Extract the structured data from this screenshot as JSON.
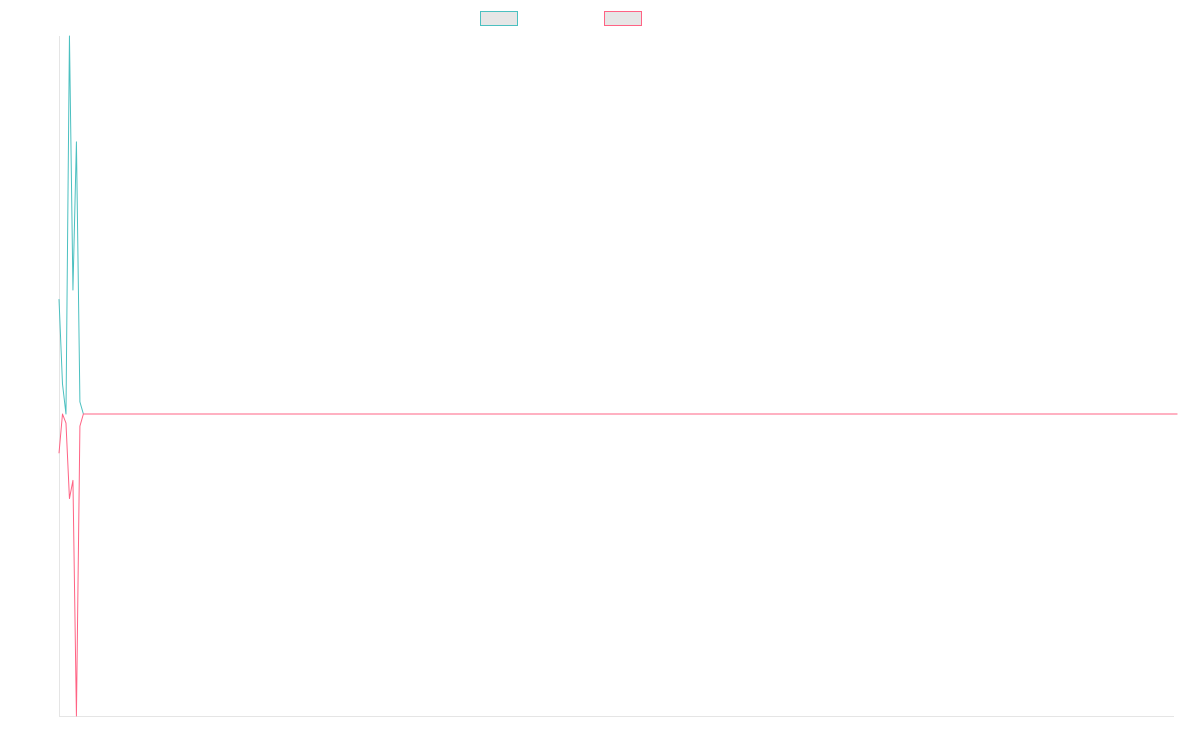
{
  "chart_data": {
    "type": "line",
    "title": "",
    "xlabel": "",
    "ylabel": "",
    "grid": false,
    "legend_placement": "top-center",
    "ylim": [
      -100,
      100
    ],
    "series": [
      {
        "color": "#4bc0c0",
        "values": [
          38,
          10,
          0,
          125,
          41,
          90,
          4,
          0,
          0,
          0,
          0,
          0,
          0,
          0,
          0,
          0,
          0,
          0,
          0,
          0,
          0,
          0,
          0,
          0,
          0,
          0,
          0,
          0,
          0,
          0,
          0,
          0,
          0,
          0,
          0,
          0,
          0,
          0,
          0,
          0,
          0,
          0,
          0,
          0,
          0,
          0,
          0,
          0,
          0,
          0,
          0,
          0,
          0,
          0,
          0,
          0,
          0,
          0,
          0,
          0,
          0,
          0,
          0,
          0,
          0,
          0,
          0,
          0,
          0,
          0,
          0,
          0,
          0,
          0,
          0,
          0,
          0,
          0,
          0,
          0,
          0,
          0,
          0,
          0,
          0,
          0,
          0,
          0,
          0,
          0,
          0,
          0,
          0,
          0,
          0,
          0,
          0,
          0,
          0,
          0,
          0,
          0,
          0,
          0,
          0,
          0,
          0,
          0,
          0,
          0,
          0,
          0,
          0,
          0,
          0,
          0,
          0,
          0,
          0,
          0,
          0,
          0,
          0,
          0,
          0,
          0,
          0,
          0,
          0,
          0,
          0,
          0,
          0,
          0,
          0,
          0,
          0,
          0,
          0,
          0,
          0,
          0,
          0,
          0,
          0,
          0,
          0,
          0,
          0,
          0,
          0,
          0,
          0,
          0,
          0,
          0,
          0,
          0,
          0,
          0,
          0,
          0,
          0,
          0,
          0,
          0,
          0,
          0,
          0,
          0,
          0,
          0,
          0,
          0,
          0,
          0,
          0,
          0,
          0,
          0,
          0,
          0,
          0,
          0,
          0,
          0,
          0,
          0,
          0,
          0,
          0,
          0,
          0,
          0,
          0,
          0,
          0,
          0,
          0,
          0,
          0,
          0,
          0,
          0,
          0,
          0,
          0,
          0,
          0,
          0,
          0,
          0,
          0,
          0,
          0,
          0,
          0,
          0,
          0,
          0,
          0,
          0,
          0,
          0,
          0,
          0,
          0,
          0,
          0,
          0,
          0,
          0,
          0,
          0,
          0,
          0,
          0,
          0,
          0,
          0,
          0,
          0,
          0,
          0,
          0,
          0,
          0,
          0,
          0,
          0,
          0,
          0,
          0,
          0,
          0,
          0,
          0,
          0,
          0,
          0,
          0,
          0,
          0,
          0,
          0,
          0,
          0,
          0,
          0,
          0,
          0,
          0,
          0,
          0,
          0,
          0,
          0,
          0,
          0,
          0,
          0,
          0,
          0,
          0,
          0,
          0,
          0,
          0,
          0,
          0,
          0,
          0,
          0,
          0,
          0,
          0,
          0,
          0,
          0,
          0,
          0,
          0,
          0,
          0,
          0,
          0,
          0,
          0,
          0,
          0,
          0,
          0,
          0,
          0,
          0,
          0,
          0,
          0,
          0,
          0,
          0
        ]
      },
      {
        "color": "#ff6384",
        "values": [
          -13,
          0,
          -3,
          -28,
          -22,
          -100,
          -4,
          0,
          0,
          0,
          0,
          0,
          0,
          0,
          0,
          0,
          0,
          0,
          0,
          0,
          0,
          0,
          0,
          0,
          0,
          0,
          0,
          0,
          0,
          0,
          0,
          0,
          0,
          0,
          0,
          0,
          0,
          0,
          0,
          0,
          0,
          0,
          0,
          0,
          0,
          0,
          0,
          0,
          0,
          0,
          0,
          0,
          0,
          0,
          0,
          0,
          0,
          0,
          0,
          0,
          0,
          0,
          0,
          0,
          0,
          0,
          0,
          0,
          0,
          0,
          0,
          0,
          0,
          0,
          0,
          0,
          0,
          0,
          0,
          0,
          0,
          0,
          0,
          0,
          0,
          0,
          0,
          0,
          0,
          0,
          0,
          0,
          0,
          0,
          0,
          0,
          0,
          0,
          0,
          0,
          0,
          0,
          0,
          0,
          0,
          0,
          0,
          0,
          0,
          0,
          0,
          0,
          0,
          0,
          0,
          0,
          0,
          0,
          0,
          0,
          0,
          0,
          0,
          0,
          0,
          0,
          0,
          0,
          0,
          0,
          0,
          0,
          0,
          0,
          0,
          0,
          0,
          0,
          0,
          0,
          0,
          0,
          0,
          0,
          0,
          0,
          0,
          0,
          0,
          0,
          0,
          0,
          0,
          0,
          0,
          0,
          0,
          0,
          0,
          0,
          0,
          0,
          0,
          0,
          0,
          0,
          0,
          0,
          0,
          0,
          0,
          0,
          0,
          0,
          0,
          0,
          0,
          0,
          0,
          0,
          0,
          0,
          0,
          0,
          0,
          0,
          0,
          0,
          0,
          0,
          0,
          0,
          0,
          0,
          0,
          0,
          0,
          0,
          0,
          0,
          0,
          0,
          0,
          0,
          0,
          0,
          0,
          0,
          0,
          0,
          0,
          0,
          0,
          0,
          0,
          0,
          0,
          0,
          0,
          0,
          0,
          0,
          0,
          0,
          0,
          0,
          0,
          0,
          0,
          0,
          0,
          0,
          0,
          0,
          0,
          0,
          0,
          0,
          0,
          0,
          0,
          0,
          0,
          0,
          0,
          0,
          0,
          0,
          0,
          0,
          0,
          0,
          0,
          0,
          0,
          0,
          0,
          0,
          0,
          0,
          0,
          0,
          0,
          0,
          0,
          0,
          0,
          0,
          0,
          0,
          0,
          0,
          0,
          0,
          0,
          0,
          0,
          0,
          0,
          0,
          0,
          0,
          0,
          0,
          0,
          0,
          0,
          0,
          0,
          0,
          0,
          0,
          0,
          0,
          0,
          0,
          0,
          0,
          0,
          0,
          0,
          0,
          0,
          0,
          0,
          0,
          0,
          0,
          0,
          0,
          0,
          0,
          0,
          0,
          0,
          0,
          0,
          0,
          0,
          0,
          0,
          0
        ]
      }
    ]
  }
}
